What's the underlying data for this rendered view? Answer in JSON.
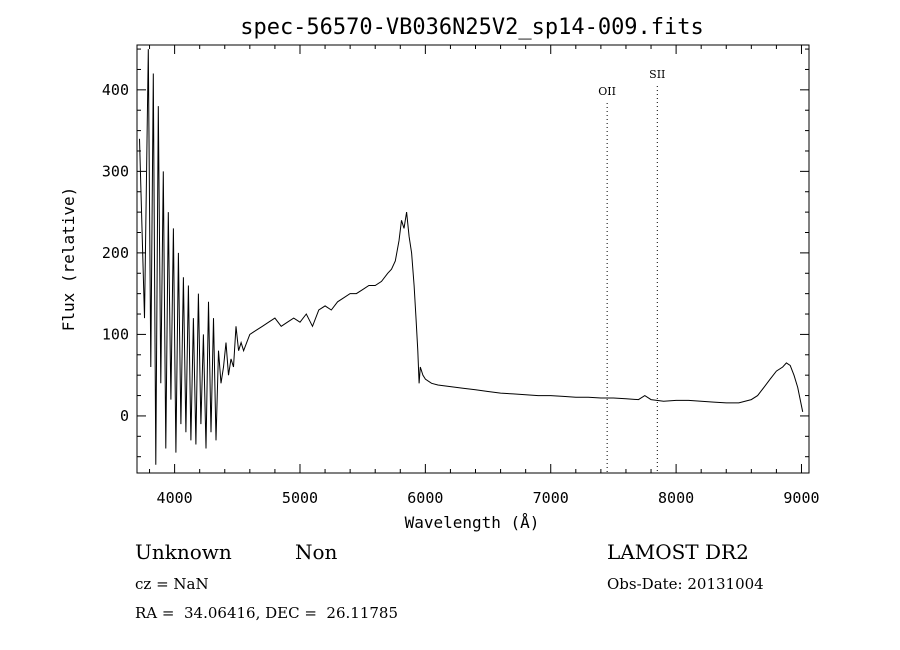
{
  "chart_data": {
    "type": "line",
    "title": "spec-56570-VB036N25V2_sp14-009.fits",
    "xlabel": "Wavelength (Å)",
    "ylabel": "Flux (relative)",
    "xlim": [
      3700,
      9060
    ],
    "ylim": [
      -70,
      455
    ],
    "xticks": [
      4000,
      5000,
      6000,
      7000,
      8000,
      9000
    ],
    "yticks": [
      0,
      100,
      200,
      300,
      400
    ],
    "grid": false,
    "series": [
      {
        "name": "",
        "x": [
          3720,
          3760,
          3790,
          3810,
          3830,
          3850,
          3870,
          3890,
          3910,
          3930,
          3950,
          3970,
          3990,
          4010,
          4030,
          4050,
          4070,
          4090,
          4110,
          4130,
          4150,
          4170,
          4190,
          4210,
          4230,
          4250,
          4270,
          4290,
          4310,
          4330,
          4350,
          4370,
          4390,
          4410,
          4430,
          4450,
          4470,
          4490,
          4510,
          4530,
          4550,
          4600,
          4650,
          4700,
          4750,
          4800,
          4850,
          4900,
          4950,
          5000,
          5050,
          5100,
          5150,
          5200,
          5250,
          5300,
          5350,
          5400,
          5450,
          5500,
          5550,
          5600,
          5650,
          5700,
          5730,
          5760,
          5790,
          5810,
          5830,
          5850,
          5870,
          5890,
          5910,
          5925,
          5940,
          5950,
          5960,
          5980,
          6000,
          6050,
          6100,
          6200,
          6300,
          6400,
          6500,
          6600,
          6700,
          6800,
          6900,
          7000,
          7100,
          7200,
          7300,
          7400,
          7500,
          7600,
          7700,
          7750,
          7800,
          7900,
          8000,
          8100,
          8200,
          8300,
          8400,
          8500,
          8600,
          8650,
          8700,
          8750,
          8800,
          8850,
          8880,
          8910,
          8940,
          8970,
          8990,
          9010
        ],
        "y": [
          340,
          120,
          450,
          60,
          420,
          -60,
          380,
          40,
          300,
          -40,
          250,
          20,
          230,
          -45,
          200,
          -10,
          170,
          -20,
          160,
          -30,
          120,
          -35,
          150,
          -10,
          100,
          -40,
          140,
          -20,
          120,
          -30,
          80,
          40,
          60,
          90,
          50,
          70,
          60,
          110,
          80,
          90,
          80,
          100,
          105,
          110,
          115,
          120,
          110,
          115,
          120,
          115,
          125,
          110,
          130,
          135,
          130,
          140,
          145,
          150,
          150,
          155,
          160,
          160,
          165,
          175,
          180,
          190,
          215,
          240,
          230,
          250,
          220,
          200,
          160,
          120,
          80,
          40,
          60,
          50,
          45,
          40,
          38,
          36,
          34,
          32,
          30,
          28,
          27,
          26,
          25,
          25,
          24,
          23,
          23,
          22,
          22,
          21,
          20,
          25,
          20,
          18,
          19,
          19,
          18,
          17,
          16,
          16,
          20,
          25,
          35,
          45,
          55,
          60,
          65,
          62,
          50,
          35,
          20,
          5
        ]
      }
    ],
    "annotations": [
      {
        "label": "OII",
        "x": 7450
      },
      {
        "label": "SII",
        "x": 7850
      }
    ]
  },
  "info": {
    "object_class": "Unknown",
    "subclass": "Non",
    "survey": "LAMOST DR2",
    "cz": "cz = NaN",
    "obs_date": "Obs-Date: 20131004",
    "coords": "RA =  34.06416, DEC =  26.11785"
  }
}
